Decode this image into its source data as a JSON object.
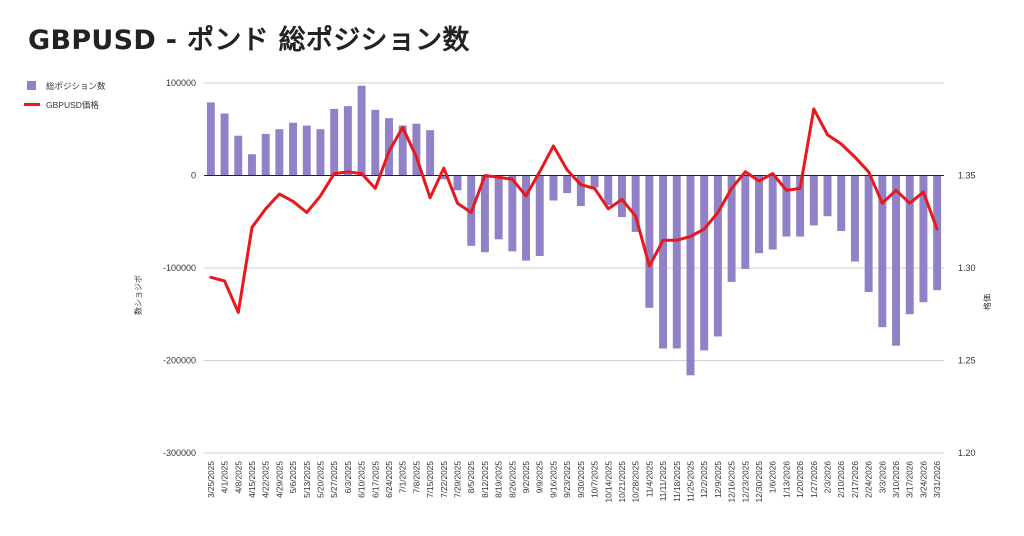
{
  "title": "GBPUSD - ポンド 総ポジション数",
  "legend": {
    "bar_label": "総ポジション数",
    "line_label": "GBPUSD価格"
  },
  "colors": {
    "bar": "#9181c6",
    "line": "#e8181c",
    "grid": "#d0d0d0",
    "zero": "#222222"
  },
  "chart_data": {
    "type": "bar+line",
    "title": "GBPUSD - ポンド 総ポジション数",
    "categories": [
      "3/25/2025",
      "4/1/2025",
      "4/8/2025",
      "4/15/2025",
      "4/22/2025",
      "4/29/2025",
      "5/6/2025",
      "5/13/2025",
      "5/20/2025",
      "5/27/2025",
      "6/3/2025",
      "6/10/2025",
      "6/17/2025",
      "6/24/2025",
      "7/1/2025",
      "7/8/2025",
      "7/15/2025",
      "7/22/2025",
      "7/29/2025",
      "8/5/2025",
      "8/12/2025",
      "8/19/2025",
      "8/26/2025",
      "9/2/2025",
      "9/9/2025",
      "9/16/2025",
      "9/23/2025",
      "9/30/2025",
      "10/7/2025",
      "10/14/2025",
      "10/21/2025",
      "10/28/2025",
      "11/4/2025",
      "11/11/2025",
      "11/18/2025",
      "11/25/2025",
      "12/2/2025",
      "12/9/2025",
      "12/16/2025",
      "12/23/2025",
      "12/30/2025",
      "1/6/2026",
      "1/13/2026",
      "1/20/2026",
      "1/27/2026",
      "2/3/2026",
      "2/10/2026",
      "2/17/2026",
      "2/24/2026",
      "3/3/2026",
      "3/10/2026",
      "3/17/2026",
      "3/24/2026",
      "3/31/2026"
    ],
    "x_tick_labels": [
      "3/25/2025",
      "4/1/2025",
      "4/8/2025",
      "4/15/2025",
      "4/22/2025",
      "4/29/2025",
      "5/6/2025",
      "5/13/2025",
      "5/20/2025",
      "5/27/2025",
      "6/3/2025",
      "6/10/2025",
      "6/17/2025",
      "6/24/2025",
      "7/1/2025",
      "7/8/2025",
      "7/15/2025",
      "7/22/2025",
      "7/29/2025",
      "8/5/2025",
      "8/12/2025",
      "8/19/2025",
      "8/26/2025",
      "9/2/2025",
      "9/9/2025",
      "9/16/2025",
      "9/23/2025",
      "9/30/2025",
      "10/7/2025",
      "10/14/2025",
      "10/21/2025",
      "10/28/2025",
      "11/4/2025",
      "11/11/2025",
      "11/18/2025",
      "11/25/2025",
      "12/2/2025",
      "12/9/2025",
      "12/16/2025",
      "12/23/2025",
      "12/30/2025",
      "1/6/2026",
      "1/13/2026",
      "1/20/2026",
      "1/27/2026",
      "2/3/2026",
      "2/10/2026",
      "2/17/2026",
      "2/24/2026",
      "3/3/2026",
      "3/10/2026",
      "3/17/2026",
      "3/24/2026",
      "3/31/2026"
    ],
    "series": [
      {
        "name": "総ポジション数",
        "type": "bar",
        "axis": "left",
        "values": [
          79000,
          67000,
          43000,
          23000,
          45000,
          50000,
          57000,
          54000,
          50000,
          72000,
          75000,
          97000,
          71000,
          62000,
          54000,
          56000,
          49000,
          -4000,
          -16000,
          -76000,
          -83000,
          -69000,
          -82000,
          -92000,
          -87000,
          -27000,
          -19000,
          -33000,
          -13000,
          -32000,
          -45000,
          -61000,
          -143000,
          -187000,
          -187000,
          -216000,
          -189000,
          -174000,
          -115000,
          -101000,
          -84000,
          -80000,
          -66000,
          -66000,
          -54000,
          -44000,
          -60000,
          -93000,
          -126000,
          -164000,
          -184000,
          -150000,
          -137000,
          -124000
        ]
      },
      {
        "name": "GBPUSD価格",
        "type": "line",
        "axis": "right",
        "values": [
          1.295,
          1.293,
          1.276,
          1.322,
          1.332,
          1.34,
          1.336,
          1.33,
          1.339,
          1.351,
          1.352,
          1.351,
          1.343,
          1.363,
          1.376,
          1.36,
          1.338,
          1.354,
          1.335,
          1.33,
          1.35,
          1.349,
          1.348,
          1.339,
          1.352,
          1.366,
          1.353,
          1.345,
          1.343,
          1.332,
          1.337,
          1.328,
          1.301,
          1.315,
          1.315,
          1.317,
          1.321,
          1.33,
          1.343,
          1.352,
          1.347,
          1.351,
          1.342,
          1.343,
          1.386,
          1.372,
          1.367,
          1.36,
          1.352,
          1.335,
          1.342,
          1.335,
          1.341,
          1.321
        ]
      }
    ],
    "y_left": {
      "label": "数ショジボ",
      "min": -300000,
      "max": 100000,
      "ticks": [
        100000,
        0,
        -100000,
        -200000,
        -300000
      ],
      "tick_labels": [
        "100000",
        "0",
        "-100000",
        "-200000",
        "-300000"
      ]
    },
    "y_right": {
      "label": "格価",
      "min": 1.2,
      "max": 1.4,
      "ticks": [
        1.35,
        1.3,
        1.25,
        1.2
      ],
      "tick_labels": [
        "1.35",
        "1.30",
        "1.25",
        "1.20"
      ]
    },
    "grid": true,
    "legend_position": "top-left"
  }
}
